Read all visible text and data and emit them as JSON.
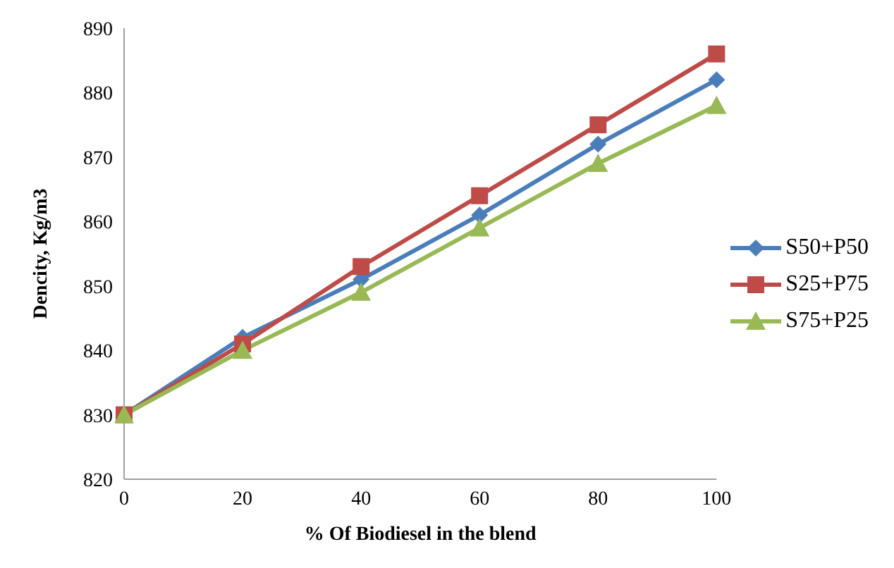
{
  "chart_data": {
    "type": "line",
    "xlabel": "% Of Biodiesel in the blend",
    "ylabel": "Dencity,  Kg/m3",
    "x": [
      0,
      20,
      40,
      60,
      80,
      100
    ],
    "xlim": [
      0,
      100
    ],
    "xticks": [
      0,
      20,
      40,
      60,
      80,
      100
    ],
    "ylim": [
      820,
      890
    ],
    "yticks": [
      820,
      830,
      840,
      850,
      860,
      870,
      880,
      890
    ],
    "grid": false,
    "legend": "right",
    "series": [
      {
        "name": "S50+P50",
        "color": "#4a7ebb",
        "marker": "diamond",
        "values": [
          830,
          842,
          851,
          861,
          872,
          882
        ]
      },
      {
        "name": "S25+P75",
        "color": "#be4b48",
        "marker": "square",
        "values": [
          830,
          841,
          853,
          864,
          875,
          886
        ]
      },
      {
        "name": "S75+P25",
        "color": "#98b954",
        "marker": "triangle",
        "values": [
          830,
          840,
          849,
          859,
          869,
          878
        ]
      }
    ]
  }
}
